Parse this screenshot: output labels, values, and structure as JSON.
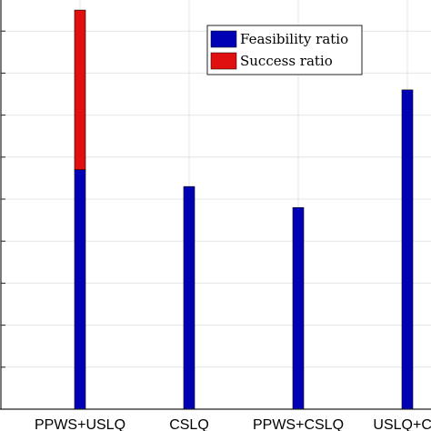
{
  "chart_data": {
    "type": "bar",
    "stacked": true,
    "categories": [
      "PPWS+USLQ",
      "CSLQ",
      "PPWS+CSLQ",
      "USLQ+CS"
    ],
    "series": [
      {
        "name": "Feasibility ratio",
        "color": "#0000b4",
        "values": [
          0.57,
          0.53,
          0.48,
          0.76
        ]
      },
      {
        "name": "Success ratio",
        "color": "#e01010",
        "values": [
          0.38,
          0.0,
          0.0,
          0.0
        ]
      }
    ],
    "ylim": [
      0,
      1
    ],
    "grid": true,
    "legend": "top-right",
    "xlabel": "",
    "ylabel": ""
  }
}
